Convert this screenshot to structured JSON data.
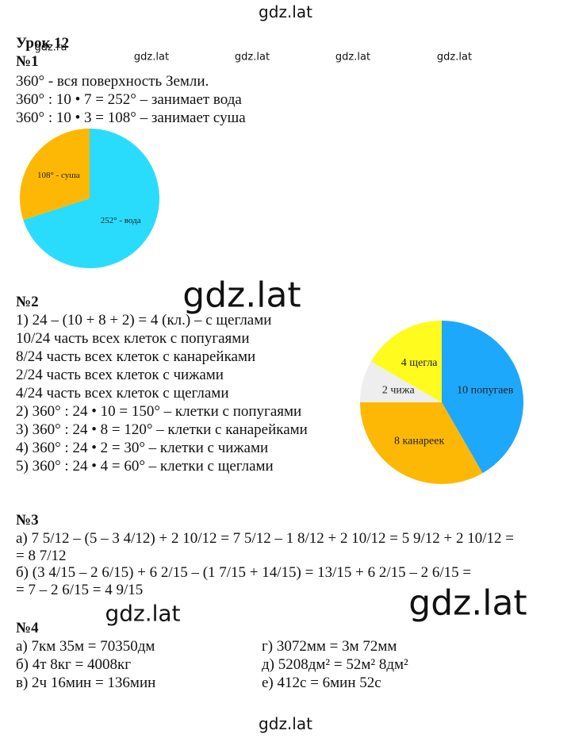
{
  "header": {
    "title": "Урок 12"
  },
  "watermarks": [
    "gdz.lat",
    "gdz.ru",
    "gdz.lat",
    "gdz.lat",
    "gdz.lat",
    "gdz.lat",
    "gdz.lat",
    "gdz.lat",
    "gdz.lat",
    "gdz.lat"
  ],
  "tasks": [
    {
      "number": "№1",
      "lines": [
        "360° - вся поверхность Земли.",
        "360° : 10 • 7 = 252° – занимает вода",
        "360° : 10 • 3 = 108° – занимает суша"
      ],
      "chart": {
        "type": "pie",
        "values": [
          252,
          108
        ],
        "value_labels": [
          "252° - вода",
          "108° - суша"
        ],
        "colors": [
          "#2adcfb",
          "#fdb805"
        ]
      }
    },
    {
      "number": "№2",
      "lines": [
        "1) 24 – (10 + 8 + 2) = 4 (кл.) – с щеглами",
        "10/24 часть всех клеток с попугаями",
        "8/24 часть всех клеток с канарейками",
        "2/24 часть всех клеток с чижами",
        "4/24 часть всех клеток с щеглами",
        "2) 360° : 24 • 10 = 150° – клетки с попугаями",
        "3) 360° : 24 • 8 = 120° – клетки с канарейками",
        "4) 360° : 24 • 2 = 30° – клетки с чижами",
        "5) 360° : 24 • 4 = 60° – клетки с щеглами"
      ],
      "chart": {
        "type": "pie",
        "values": [
          10,
          8,
          2,
          4
        ],
        "value_labels": [
          "10 попугаев",
          "8 канареек",
          "2 чижа",
          "4 щегла"
        ],
        "colors": [
          "#1ea8fb",
          "#fdb805",
          "#eeeeee",
          "#fffb1e"
        ]
      }
    },
    {
      "number": "№3",
      "lines": [
        "а) 7 5/12 – (5 – 3 4/12) + 2 10/12 = 7 5/12 – 1 8/12 + 2 10/12 = 5 9/12 + 2 10/12 =",
        "= 8 7/12",
        "б) (3 4/15 – 2 6/15) + 6 2/15 – (1 7/15 + 14/15) = 13/15 + 6 2/15 – 2 6/15 =",
        "= 7 – 2 6/15 = 4 9/15"
      ]
    },
    {
      "number": "№4",
      "columns": [
        [
          "а) 7км 35м = 70350дм",
          "б) 4т 8кг = 4008кг",
          "в) 2ч 16мин = 136мин"
        ],
        [
          "г) 3072мм = 3м 72мм",
          "д) 5208дм² = 52м² 8дм²",
          "е) 412с = 6мин 52с"
        ]
      ]
    }
  ]
}
